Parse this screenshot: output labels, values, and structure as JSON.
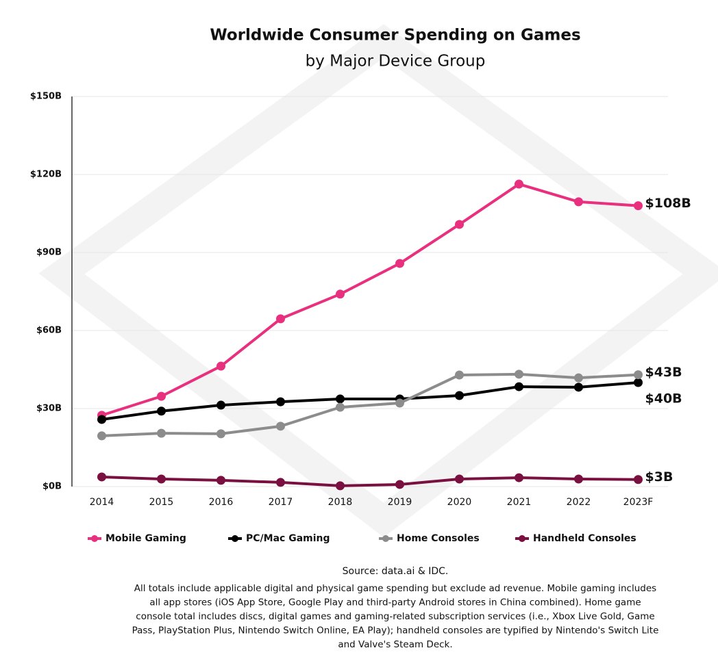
{
  "chart_data": {
    "type": "line",
    "title": "Worldwide Consumer Spending on Games",
    "subtitle": "by Major Device Group",
    "categories": [
      "2014",
      "2015",
      "2016",
      "2017",
      "2018",
      "2019",
      "2020",
      "2021",
      "2022",
      "2023F"
    ],
    "series": [
      {
        "name": "Mobile Gaming",
        "color": "#e8307f",
        "values": [
          27.4,
          34.7,
          46.3,
          64.5,
          74,
          85.8,
          100.8,
          116.3,
          109.5,
          108
        ],
        "value_labels": [
          null,
          null,
          null,
          null,
          null,
          null,
          null,
          null,
          null,
          "$108B"
        ]
      },
      {
        "name": "PC/Mac Gaming",
        "color": "#000000",
        "values": [
          25.8,
          29,
          31.3,
          32.6,
          33.7,
          33.7,
          35,
          38.4,
          38.2,
          40
        ],
        "value_labels": [
          null,
          null,
          null,
          null,
          null,
          null,
          null,
          null,
          null,
          "$40B"
        ]
      },
      {
        "name": "Home Consoles",
        "color": "#8c8c8c",
        "values": [
          19.5,
          20.5,
          20.3,
          23.2,
          30.5,
          32.1,
          42.9,
          43.2,
          41.8,
          43
        ],
        "value_labels": [
          null,
          null,
          null,
          null,
          null,
          null,
          null,
          null,
          null,
          "$43B"
        ]
      },
      {
        "name": "Handheld Consoles",
        "color": "#7a1040",
        "values": [
          3.7,
          2.9,
          2.4,
          1.6,
          0.3,
          0.8,
          2.9,
          3.4,
          2.9,
          2.7
        ],
        "value_labels": [
          null,
          null,
          null,
          null,
          null,
          null,
          null,
          null,
          null,
          "$3B"
        ]
      }
    ],
    "ylim": [
      0,
      150
    ],
    "yticks": [
      {
        "value": 0,
        "label": "$0B"
      },
      {
        "value": 30,
        "label": "$30B"
      },
      {
        "value": 60,
        "label": "$60B"
      },
      {
        "value": 90,
        "label": "$90B"
      },
      {
        "value": 120,
        "label": "$120B"
      },
      {
        "value": 150,
        "label": "$150B"
      }
    ],
    "grid": true,
    "source": "Source: data.ai & IDC.",
    "notes": [
      "All totals include applicable digital and physical game spending but exclude ad revenue. Mobile gaming includes",
      "all app stores (iOS App Store, Google Play and third-party Android stores in China combined). Home game",
      "console total includes discs, digital games and gaming-related subscription services (i.e., Xbox Live Gold, Game",
      "Pass, PlayStation Plus, Nintendo Switch Online, EA Play); handheld consoles are typified by Nintendo's Switch Lite",
      "and Valve's Steam Deck."
    ]
  }
}
